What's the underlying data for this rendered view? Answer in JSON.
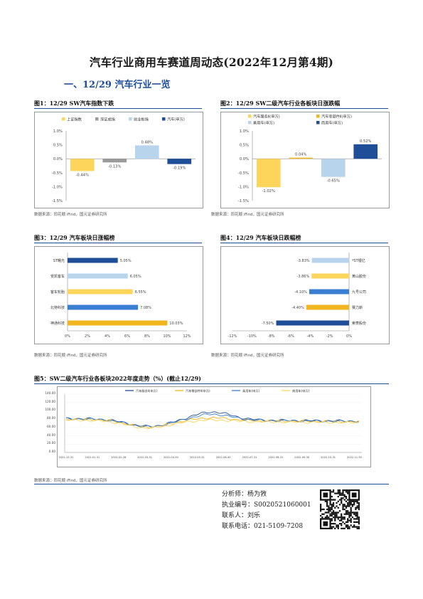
{
  "doc": {
    "title": "汽车行业商用车赛道周动态(2022年12月第4期)",
    "section": "一、12/29 汽车行业一览"
  },
  "colors": {
    "yellow": "#fdd55b",
    "gray": "#9a9a9a",
    "light_blue": "#b7d4ec",
    "navy": "#1f4e99",
    "mid_blue": "#3a7ed1",
    "amber": "#f1b51f",
    "accent": "#1f4e99"
  },
  "fig1": {
    "title": "图1：12/29 SW汽车指数下跌",
    "source": "数据来源：同花顺 iFind，国元证券研究所"
  },
  "fig2": {
    "title": "图2：12/29 SW二级汽车行业各板块日涨跌幅",
    "source": "数据来源：同花顺 iFind，国元证券研究所"
  },
  "fig3": {
    "title": "图3：12/29 汽车板块日涨幅榜",
    "source": "数据来源：同花顺 iFind，国元证券研究所"
  },
  "fig4": {
    "title": "图4：12/29 汽车板块日跌幅榜",
    "source": "数据来源：同花顺 iFind，国元证券研究所"
  },
  "fig5": {
    "title": "图5：SW二级汽车行业各板块2022年度走势（%）(截止12/29)",
    "source": "数据来源：同花顺 iFind，国元证券研究所"
  },
  "analyst": {
    "name_line": "分析师：杨为敩",
    "license_line": "执业编号：S0020521060001",
    "contact_line": "联系人：刘乐",
    "phone_line": "联系电话：021-5109-7208"
  },
  "chart_data": [
    {
      "type": "bar",
      "categories": [
        "上证指数",
        "深证成指",
        "创业板指",
        "汽车(申万)"
      ],
      "values": [
        -0.44,
        -0.13,
        0.48,
        -0.19
      ],
      "data_labels": [
        "-0.44%",
        "-0.13%",
        "0.48%",
        "-0.19%"
      ],
      "colors": [
        "#fdd55b",
        "#9a9a9a",
        "#b7d4ec",
        "#1f4e99"
      ],
      "ylim": [
        -1.5,
        1.0
      ],
      "yticks": [
        "1.0%",
        "0.5%",
        "0.0%",
        "-0.5%",
        "-1.0%",
        "-1.5%"
      ],
      "legend": "top"
    },
    {
      "type": "bar",
      "categories": [
        "汽车服务Ⅱ(申万)",
        "汽车零部件Ⅱ(申万)",
        "乘用车(申万)",
        "商用车(申万)"
      ],
      "values": [
        -1.02,
        0.04,
        -0.65,
        0.52
      ],
      "data_labels": [
        "-1.02%",
        "0.04%",
        "-0.65%",
        "0.52%"
      ],
      "colors": [
        "#fdd55b",
        "#f1b51f",
        "#b7d4ec",
        "#1f4e99"
      ],
      "ylim": [
        -1.5,
        1.0
      ],
      "yticks": [
        "1.0%",
        "0.5%",
        "0.0%",
        "-0.5%",
        "-1.0%",
        "-1.5%"
      ],
      "legend": "top"
    },
    {
      "type": "bar",
      "orientation": "horizontal",
      "categories": [
        "ST曙光",
        "安凯客车",
        "客车轮胎",
        "北特科技",
        "神通科技"
      ],
      "values": [
        5.05,
        6.05,
        6.55,
        7.08,
        10.03
      ],
      "data_labels": [
        "5.05%",
        "6.05%",
        "6.55%",
        "7.08%",
        "10.03%"
      ],
      "colors": [
        "#1f4e99",
        "#b7d4ec",
        "#fdd55b",
        "#3a7ed1",
        "#f1b51f"
      ],
      "xlim": [
        0,
        12
      ],
      "xticks": [
        "0%",
        "2%",
        "4%",
        "6%",
        "8%",
        "10%",
        "12%"
      ]
    },
    {
      "type": "bar",
      "orientation": "horizontal",
      "categories": [
        "*ST银亿",
        "黄山胶份",
        "九号公司",
        "赛力斯",
        "索菱股份"
      ],
      "values": [
        -3.83,
        -3.86,
        -4.1,
        -4.4,
        -7.5
      ],
      "data_labels": [
        "-3.83%",
        "-3.86%",
        "-4.10%",
        "-4.40%",
        "-7.50%"
      ],
      "colors": [
        "#b7d4ec",
        "#fdd55b",
        "#3a7ed1",
        "#f1b51f",
        "#1f4e99"
      ],
      "xlim": [
        -12,
        0
      ],
      "xticks": [
        "-12%",
        "-10%",
        "-8%",
        "-6%",
        "-4%",
        "-2%",
        "0%"
      ]
    },
    {
      "type": "line",
      "series": [
        {
          "name": "汽车服务Ⅱ(申万)",
          "color": "#1f4e99"
        },
        {
          "name": "汽车零部件Ⅱ(申万)",
          "color": "#f1b51f"
        },
        {
          "name": "乘用车(申万)",
          "color": "#3a7ed1"
        },
        {
          "name": "商用车(申万)",
          "color": "#fdd55b"
        }
      ],
      "x": [
        "2021-12-31",
        "2022-01-31",
        "2022-02-28",
        "2022-03-31",
        "2022-04-30",
        "2022-05-31",
        "2022-06-30",
        "2022-07-31",
        "2022-08-31",
        "2022-09-30",
        "2022-10-31",
        "2022-11-30"
      ],
      "ylim": [
        0,
        140
      ],
      "yticks": [
        "140.00",
        "120.00",
        "100.00",
        "80.00",
        "60.00",
        "40.00",
        "20.00",
        "0.00"
      ],
      "legend": "top"
    }
  ]
}
